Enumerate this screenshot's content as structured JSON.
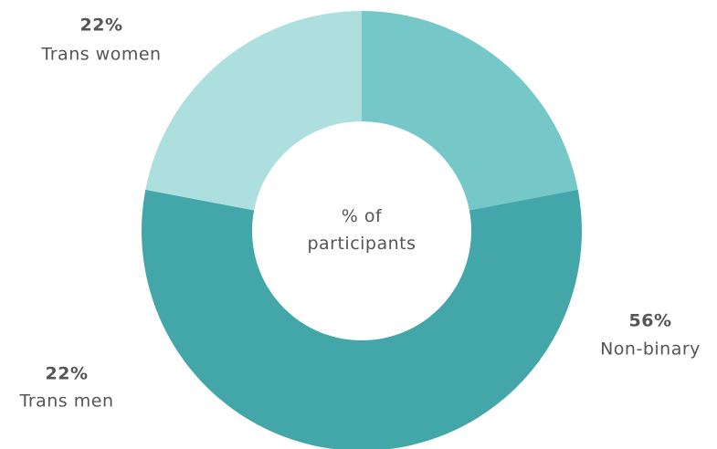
{
  "chart_data": {
    "type": "donut",
    "center_label": "% of participants",
    "categories": [
      "Trans men",
      "Non-binary",
      "Trans women"
    ],
    "values": [
      22,
      56,
      22
    ],
    "value_labels": [
      "22%",
      "56%",
      "22%"
    ],
    "colors": [
      "#76c8c8",
      "#43a7a9",
      "#aedfdf"
    ]
  }
}
